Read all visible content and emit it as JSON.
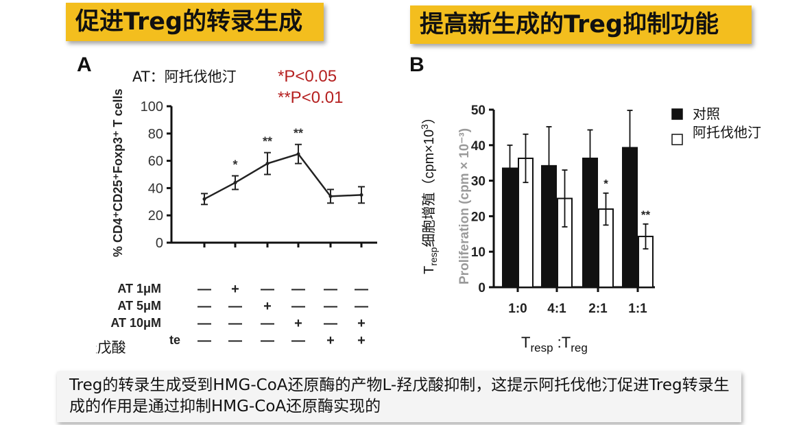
{
  "banners": {
    "left": "促进Treg的转录生成",
    "right": "提高新生成的Treg抑制功能"
  },
  "panel_a": {
    "letter": "A",
    "at_note": "AT：阿托伐他汀",
    "sig1": "*P<0.05",
    "sig2": "**P<0.01",
    "condition_rows": [
      {
        "label": "AT 1μM",
        "marks": [
          "—",
          "+",
          "—",
          "—",
          "—",
          "—"
        ]
      },
      {
        "label": "AT 5μM",
        "marks": [
          "—",
          "—",
          "+",
          "—",
          "—",
          "—"
        ]
      },
      {
        "label": "AT 10μM",
        "marks": [
          "—",
          "—",
          "—",
          "+",
          "—",
          "+"
        ]
      },
      {
        "label": "L－羟戊酸",
        "partial": "te",
        "marks": [
          "—",
          "—",
          "—",
          "—",
          "+",
          "+"
        ]
      }
    ]
  },
  "panel_b": {
    "letter": "B",
    "legend_control": "对照",
    "legend_at": "阿托伐他汀"
  },
  "chart_data": [
    {
      "type": "line",
      "ylabel": "% CD4⁺CD25⁺Foxp3⁺ T cells",
      "ylim": [
        0,
        100
      ],
      "yticks": [
        "0",
        "20",
        "40",
        "60",
        "80",
        "100"
      ],
      "x": [
        1,
        2,
        3,
        4,
        5,
        6
      ],
      "series": [
        {
          "values": [
            32,
            44,
            58,
            65,
            34,
            35
          ],
          "errors": [
            4,
            5,
            8,
            7,
            5,
            6
          ]
        }
      ],
      "annotations": [
        "",
        "*",
        "**",
        "**",
        "",
        ""
      ]
    },
    {
      "type": "bar",
      "xlabel": {
        "main": "T",
        "sub1": "resp",
        "sep": ":T",
        "sub2": "reg"
      },
      "ylabel": {
        "main": "T",
        "sub": "resp",
        "rest": "细胞增殖（cpm×10",
        "sup": "3",
        "end": "）"
      },
      "ylabel_ghost": "Proliferation (cpm × 10⁻³)",
      "ylim": [
        0,
        50
      ],
      "yticks": [
        "0",
        "10",
        "20",
        "30",
        "40",
        "50"
      ],
      "categories": [
        "1:0",
        "4:1",
        "2:1",
        "1:1"
      ],
      "series": [
        {
          "name": "对照",
          "color": "#111111",
          "values": [
            33.5,
            34.2,
            36.3,
            39.3
          ],
          "errors": [
            6.5,
            11,
            8,
            10.5
          ]
        },
        {
          "name": "阿托伐他汀",
          "color": "#ffffff",
          "values": [
            36.3,
            25,
            22,
            14.3
          ],
          "errors": [
            6.8,
            8,
            4.5,
            3.5
          ]
        }
      ],
      "annotations": [
        "",
        "",
        "*",
        "**"
      ]
    }
  ],
  "footer": "Treg的转录生成受到HMG-CoA还原酶的产物L-羟戊酸抑制，这提示阿托伐他汀促进Treg转录生成的作用是通过抑制HMG-CoA还原酶实现的"
}
